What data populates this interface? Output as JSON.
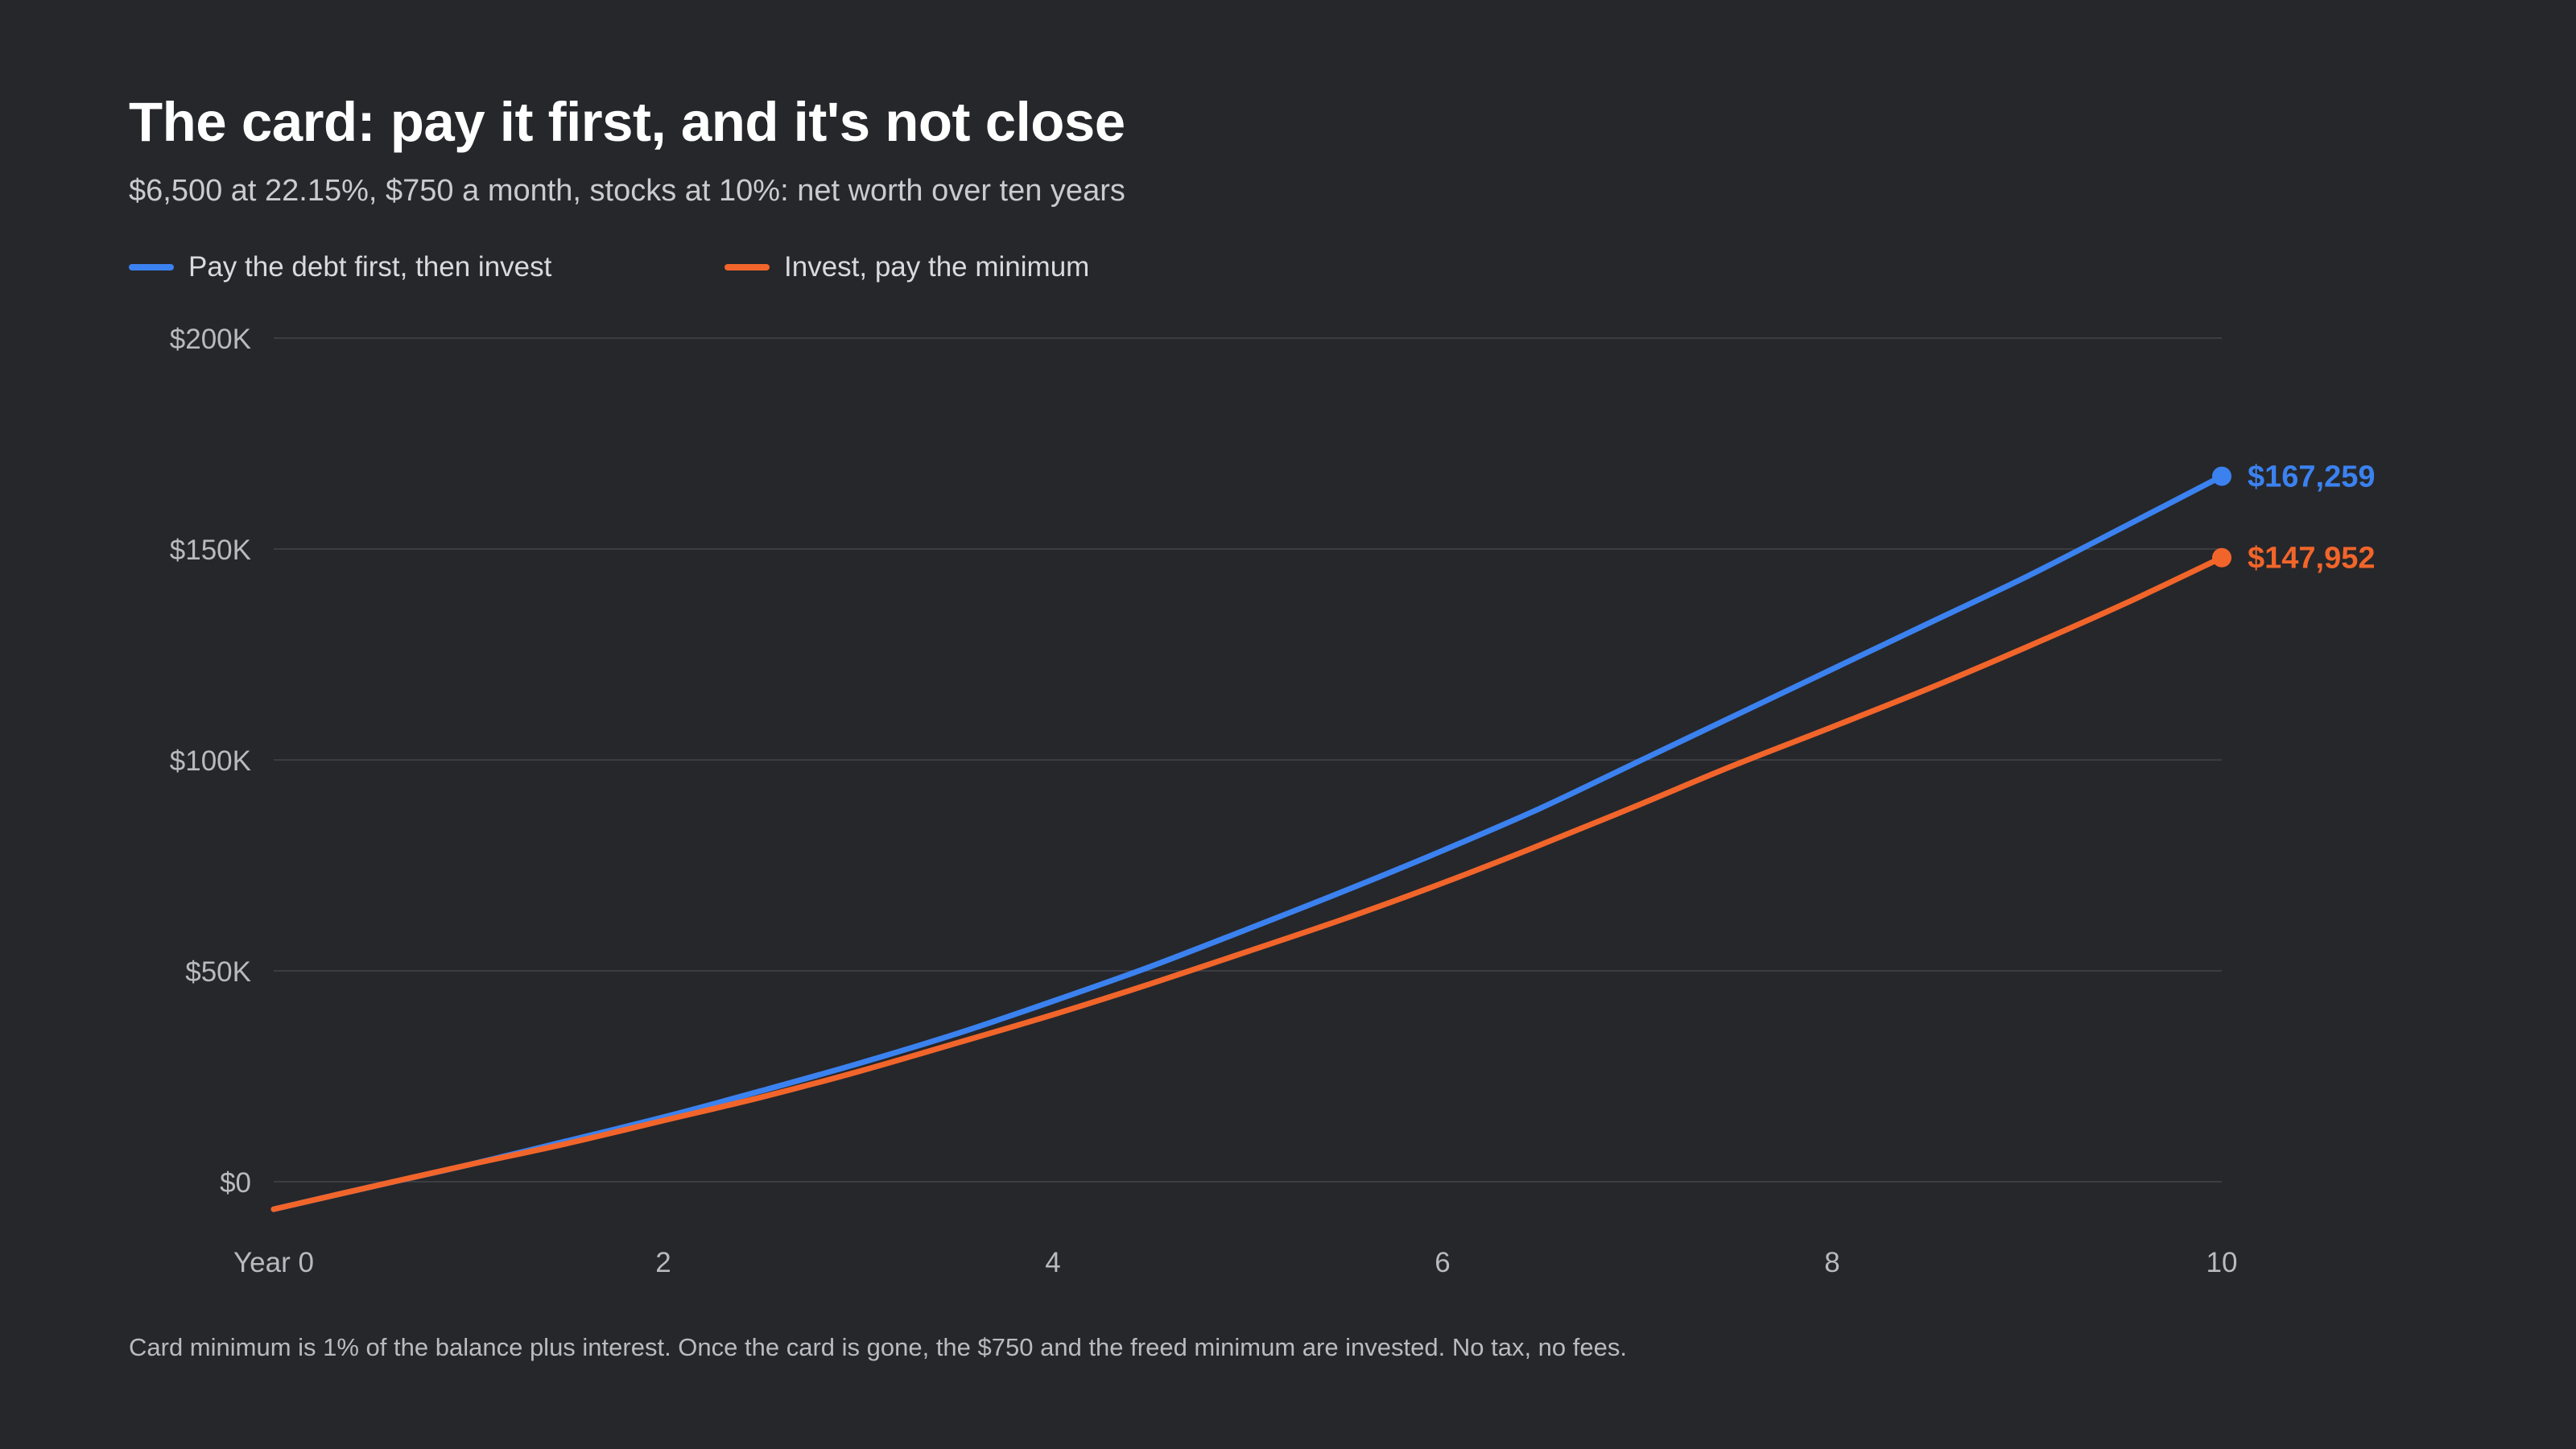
{
  "title": "The card: pay it first, and it's not close",
  "subtitle": "$6,500 at 22.15%, $750 a month, stocks at 10%: net worth over ten years",
  "footnote": "Card minimum is 1% of the balance plus interest. Once the card is gone, the $750 and the freed minimum are invested. No tax, no fees.",
  "colors": {
    "background": "#26272b",
    "grid": "#3c3d42",
    "axis_text": "#b8bac0",
    "series_debt_first": "#3b82f0",
    "series_invest": "#f2652a"
  },
  "chart_data": {
    "type": "line",
    "xlim": [
      0,
      10
    ],
    "ylim": [
      -6500,
      200000
    ],
    "x_ticks": [
      0,
      2,
      4,
      6,
      8,
      10
    ],
    "x_tick_labels": [
      "Year 0",
      "2",
      "4",
      "6",
      "8",
      "10"
    ],
    "y_ticks": [
      0,
      50000,
      100000,
      150000,
      200000
    ],
    "y_tick_labels": [
      "$0",
      "$50K",
      "$100K",
      "$150K",
      "$200K"
    ],
    "grid": true,
    "legend_position": "top-left",
    "xlabel": "",
    "ylabel": "",
    "series": [
      {
        "name": "Pay the debt first, then invest",
        "color": "#3b82f0",
        "x": [
          0,
          0.5,
          1,
          1.5,
          2,
          2.5,
          3,
          3.5,
          4,
          4.5,
          5,
          5.5,
          6,
          6.5,
          7,
          7.5,
          8,
          8.5,
          9,
          9.5,
          10
        ],
        "y": [
          -6500,
          -1200,
          4000,
          9600,
          15300,
          21500,
          28000,
          35000,
          42800,
          51000,
          59900,
          69000,
          78500,
          88500,
          99500,
          110500,
          121500,
          132500,
          143500,
          155300,
          167259
        ],
        "end_label": "$167,259"
      },
      {
        "name": "Invest, pay the minimum",
        "color": "#f2652a",
        "x": [
          0,
          0.5,
          1,
          1.5,
          2,
          2.5,
          3,
          3.5,
          4,
          4.5,
          5,
          5.5,
          6,
          6.5,
          7,
          7.5,
          8,
          8.5,
          9,
          9.5,
          10
        ],
        "y": [
          -6500,
          -1200,
          4000,
          9000,
          14500,
          20000,
          26100,
          32800,
          39600,
          46900,
          54600,
          62400,
          70800,
          79800,
          89200,
          98800,
          107800,
          117000,
          126800,
          137000,
          147952
        ],
        "end_label": "$147,952"
      }
    ]
  }
}
